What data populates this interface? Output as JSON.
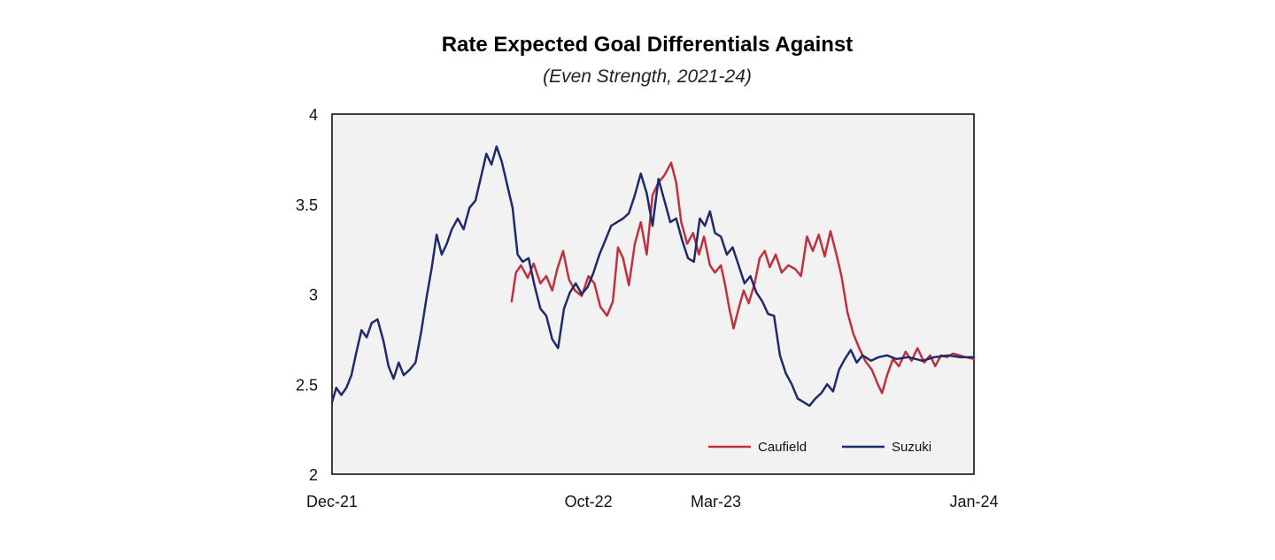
{
  "chart_data": {
    "type": "line",
    "title": "Rate Expected Goal Differentials Against",
    "subtitle": "(Even Strength, 2021-24)",
    "xlabel": "",
    "ylabel": "",
    "ylim": [
      2,
      4
    ],
    "yticks": [
      {
        "value": 2,
        "label": "2"
      },
      {
        "value": 2.5,
        "label": "2.5"
      },
      {
        "value": 3,
        "label": "3"
      },
      {
        "value": 3.5,
        "label": "3.5"
      },
      {
        "value": 4,
        "label": "4"
      }
    ],
    "xlim": [
      "2021-12",
      "2024-01"
    ],
    "xticks": [
      {
        "value": "2021-12",
        "label": "Dec-21"
      },
      {
        "value": "2022-10",
        "label": "Oct-22"
      },
      {
        "value": "2023-03",
        "label": "Mar-23"
      },
      {
        "value": "2024-01",
        "label": "Jan-24"
      }
    ],
    "grid": false,
    "legend_position": "bottom-right",
    "plot_background": "#f2f2f2",
    "series": [
      {
        "name": "Caufield",
        "color": "#c0313f",
        "points": [
          [
            "2022-07-02",
            2.96
          ],
          [
            "2022-07-07",
            3.12
          ],
          [
            "2022-07-13",
            3.16
          ],
          [
            "2022-07-21",
            3.09
          ],
          [
            "2022-07-28",
            3.17
          ],
          [
            "2022-08-05",
            3.06
          ],
          [
            "2022-08-12",
            3.1
          ],
          [
            "2022-08-19",
            3.02
          ],
          [
            "2022-08-25",
            3.14
          ],
          [
            "2022-09-01",
            3.24
          ],
          [
            "2022-09-08",
            3.08
          ],
          [
            "2022-09-15",
            3.02
          ],
          [
            "2022-09-23",
            2.99
          ],
          [
            "2022-10-01",
            3.1
          ],
          [
            "2022-10-08",
            3.06
          ],
          [
            "2022-10-15",
            2.93
          ],
          [
            "2022-10-23",
            2.88
          ],
          [
            "2022-10-30",
            2.96
          ],
          [
            "2022-11-05",
            3.26
          ],
          [
            "2022-11-11",
            3.2
          ],
          [
            "2022-11-18",
            3.05
          ],
          [
            "2022-11-25",
            3.28
          ],
          [
            "2022-12-02",
            3.4
          ],
          [
            "2022-12-09",
            3.22
          ],
          [
            "2022-12-16",
            3.55
          ],
          [
            "2022-12-23",
            3.62
          ],
          [
            "2022-12-30",
            3.66
          ],
          [
            "2023-01-07",
            3.73
          ],
          [
            "2023-01-13",
            3.62
          ],
          [
            "2023-01-19",
            3.4
          ],
          [
            "2023-01-26",
            3.28
          ],
          [
            "2023-02-02",
            3.34
          ],
          [
            "2023-02-09",
            3.22
          ],
          [
            "2023-02-15",
            3.32
          ],
          [
            "2023-02-22",
            3.16
          ],
          [
            "2023-02-28",
            3.12
          ],
          [
            "2023-03-07",
            3.16
          ],
          [
            "2023-03-12",
            3.05
          ],
          [
            "2023-03-17",
            2.92
          ],
          [
            "2023-03-22",
            2.81
          ],
          [
            "2023-03-28",
            2.92
          ],
          [
            "2023-04-03",
            3.02
          ],
          [
            "2023-04-09",
            2.95
          ],
          [
            "2023-04-16",
            3.06
          ],
          [
            "2023-04-22",
            3.2
          ],
          [
            "2023-04-28",
            3.24
          ],
          [
            "2023-05-04",
            3.15
          ],
          [
            "2023-05-11",
            3.22
          ],
          [
            "2023-05-18",
            3.12
          ],
          [
            "2023-05-26",
            3.16
          ],
          [
            "2023-06-03",
            3.14
          ],
          [
            "2023-06-10",
            3.1
          ],
          [
            "2023-06-17",
            3.32
          ],
          [
            "2023-06-24",
            3.24
          ],
          [
            "2023-07-01",
            3.33
          ],
          [
            "2023-07-08",
            3.21
          ],
          [
            "2023-07-15",
            3.35
          ],
          [
            "2023-07-22",
            3.22
          ],
          [
            "2023-07-28",
            3.1
          ],
          [
            "2023-08-04",
            2.9
          ],
          [
            "2023-08-11",
            2.78
          ],
          [
            "2023-08-18",
            2.7
          ],
          [
            "2023-08-25",
            2.63
          ],
          [
            "2023-09-02",
            2.58
          ],
          [
            "2023-09-09",
            2.5
          ],
          [
            "2023-09-14",
            2.45
          ],
          [
            "2023-09-20",
            2.55
          ],
          [
            "2023-09-27",
            2.64
          ],
          [
            "2023-10-04",
            2.6
          ],
          [
            "2023-10-12",
            2.68
          ],
          [
            "2023-10-19",
            2.63
          ],
          [
            "2023-10-26",
            2.7
          ],
          [
            "2023-11-03",
            2.62
          ],
          [
            "2023-11-10",
            2.66
          ],
          [
            "2023-11-16",
            2.6
          ],
          [
            "2023-11-23",
            2.66
          ],
          [
            "2023-11-30",
            2.65
          ],
          [
            "2023-12-07",
            2.67
          ],
          [
            "2023-12-15",
            2.66
          ],
          [
            "2023-12-22",
            2.65
          ],
          [
            "2024-01-01",
            2.64
          ]
        ]
      },
      {
        "name": "Suzuki",
        "color": "#1f2a6b",
        "points": [
          [
            "2021-12-01",
            2.4
          ],
          [
            "2021-12-06",
            2.48
          ],
          [
            "2021-12-12",
            2.44
          ],
          [
            "2021-12-18",
            2.48
          ],
          [
            "2021-12-24",
            2.55
          ],
          [
            "2021-12-30",
            2.68
          ],
          [
            "2022-01-05",
            2.8
          ],
          [
            "2022-01-11",
            2.76
          ],
          [
            "2022-01-17",
            2.84
          ],
          [
            "2022-01-24",
            2.86
          ],
          [
            "2022-01-31",
            2.74
          ],
          [
            "2022-02-06",
            2.6
          ],
          [
            "2022-02-12",
            2.53
          ],
          [
            "2022-02-18",
            2.62
          ],
          [
            "2022-02-24",
            2.55
          ],
          [
            "2022-03-03",
            2.58
          ],
          [
            "2022-03-10",
            2.62
          ],
          [
            "2022-03-17",
            2.8
          ],
          [
            "2022-03-23",
            2.98
          ],
          [
            "2022-03-29",
            3.14
          ],
          [
            "2022-04-04",
            3.33
          ],
          [
            "2022-04-10",
            3.22
          ],
          [
            "2022-04-16",
            3.28
          ],
          [
            "2022-04-22",
            3.36
          ],
          [
            "2022-04-29",
            3.42
          ],
          [
            "2022-05-06",
            3.36
          ],
          [
            "2022-05-13",
            3.48
          ],
          [
            "2022-05-20",
            3.52
          ],
          [
            "2022-05-26",
            3.64
          ],
          [
            "2022-06-02",
            3.78
          ],
          [
            "2022-06-08",
            3.72
          ],
          [
            "2022-06-14",
            3.82
          ],
          [
            "2022-06-20",
            3.74
          ],
          [
            "2022-06-26",
            3.62
          ],
          [
            "2022-07-03",
            3.48
          ],
          [
            "2022-07-09",
            3.22
          ],
          [
            "2022-07-15",
            3.18
          ],
          [
            "2022-07-22",
            3.2
          ],
          [
            "2022-07-29",
            3.05
          ],
          [
            "2022-08-05",
            2.92
          ],
          [
            "2022-08-12",
            2.88
          ],
          [
            "2022-08-19",
            2.75
          ],
          [
            "2022-08-26",
            2.7
          ],
          [
            "2022-09-02",
            2.92
          ],
          [
            "2022-09-09",
            3.01
          ],
          [
            "2022-09-16",
            3.06
          ],
          [
            "2022-09-23",
            3.0
          ],
          [
            "2022-09-30",
            3.04
          ],
          [
            "2022-10-07",
            3.12
          ],
          [
            "2022-10-14",
            3.22
          ],
          [
            "2022-10-21",
            3.3
          ],
          [
            "2022-10-28",
            3.38
          ],
          [
            "2022-11-04",
            3.4
          ],
          [
            "2022-11-11",
            3.42
          ],
          [
            "2022-11-18",
            3.45
          ],
          [
            "2022-11-25",
            3.55
          ],
          [
            "2022-12-02",
            3.67
          ],
          [
            "2022-12-09",
            3.56
          ],
          [
            "2022-12-16",
            3.38
          ],
          [
            "2022-12-23",
            3.64
          ],
          [
            "2022-12-30",
            3.52
          ],
          [
            "2023-01-06",
            3.4
          ],
          [
            "2023-01-13",
            3.42
          ],
          [
            "2023-01-20",
            3.3
          ],
          [
            "2023-01-27",
            3.2
          ],
          [
            "2023-02-03",
            3.18
          ],
          [
            "2023-02-10",
            3.42
          ],
          [
            "2023-02-16",
            3.38
          ],
          [
            "2023-02-22",
            3.46
          ],
          [
            "2023-02-28",
            3.34
          ],
          [
            "2023-03-07",
            3.32
          ],
          [
            "2023-03-14",
            3.22
          ],
          [
            "2023-03-21",
            3.26
          ],
          [
            "2023-03-28",
            3.16
          ],
          [
            "2023-04-04",
            3.06
          ],
          [
            "2023-04-11",
            3.1
          ],
          [
            "2023-04-18",
            3.01
          ],
          [
            "2023-04-25",
            2.96
          ],
          [
            "2023-05-02",
            2.89
          ],
          [
            "2023-05-09",
            2.88
          ],
          [
            "2023-05-16",
            2.66
          ],
          [
            "2023-05-23",
            2.56
          ],
          [
            "2023-05-30",
            2.5
          ],
          [
            "2023-06-06",
            2.42
          ],
          [
            "2023-06-13",
            2.4
          ],
          [
            "2023-06-20",
            2.38
          ],
          [
            "2023-06-27",
            2.42
          ],
          [
            "2023-07-04",
            2.45
          ],
          [
            "2023-07-11",
            2.5
          ],
          [
            "2023-07-18",
            2.46
          ],
          [
            "2023-07-25",
            2.58
          ],
          [
            "2023-08-01",
            2.64
          ],
          [
            "2023-08-08",
            2.69
          ],
          [
            "2023-08-15",
            2.62
          ],
          [
            "2023-08-22",
            2.66
          ],
          [
            "2023-09-01",
            2.63
          ],
          [
            "2023-09-10",
            2.65
          ],
          [
            "2023-09-20",
            2.66
          ],
          [
            "2023-10-01",
            2.64
          ],
          [
            "2023-10-15",
            2.65
          ],
          [
            "2023-11-01",
            2.63
          ],
          [
            "2023-11-15",
            2.65
          ],
          [
            "2023-12-01",
            2.66
          ],
          [
            "2023-12-15",
            2.65
          ],
          [
            "2024-01-01",
            2.65
          ]
        ]
      }
    ]
  }
}
